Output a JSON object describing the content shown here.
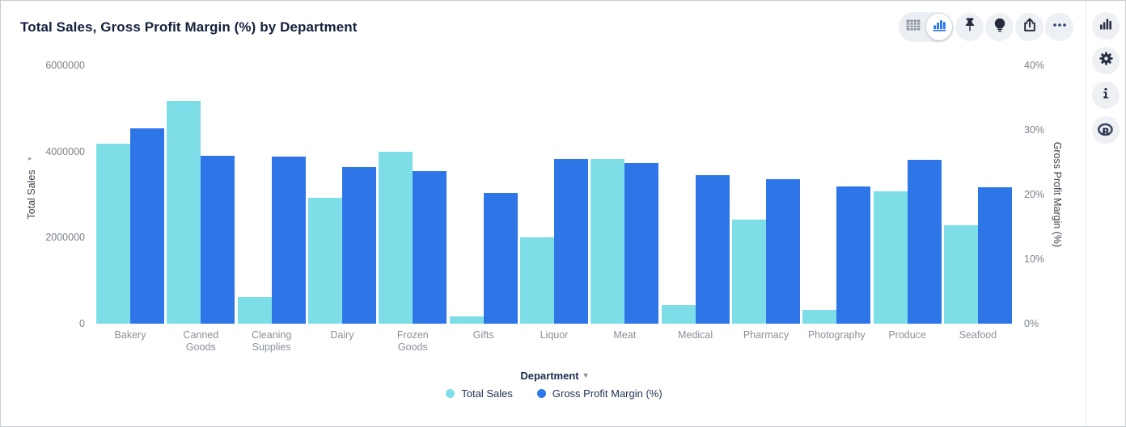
{
  "header": {
    "title": "Total Sales, Gross Profit Margin (%) by Department"
  },
  "toolbar": {
    "view_toggle": {
      "selected": "chart",
      "options": [
        "table",
        "chart"
      ]
    },
    "buttons": [
      "pin",
      "insights",
      "export",
      "more-options"
    ]
  },
  "right_rail": {
    "buttons": [
      "chart-type",
      "settings",
      "info",
      "r-analytics"
    ]
  },
  "chart_data": {
    "type": "bar",
    "title": "Total Sales, Gross Profit Margin (%) by Department",
    "categories": [
      "Bakery",
      "Canned Goods",
      "Cleaning Supplies",
      "Dairy",
      "Frozen Goods",
      "Gifts",
      "Liquor",
      "Meat",
      "Medical",
      "Pharmacy",
      "Photography",
      "Produce",
      "Seafood"
    ],
    "series": [
      {
        "name": "Total Sales",
        "axis": "left",
        "color": "#7EDEE8",
        "values": [
          4180000,
          5180000,
          620000,
          2930000,
          3990000,
          170000,
          2000000,
          3830000,
          430000,
          2420000,
          320000,
          3080000,
          2290000
        ]
      },
      {
        "name": "Gross Profit Margin (%)",
        "axis": "right",
        "color": "#2E76E8",
        "values": [
          30.3,
          26,
          25.9,
          24.3,
          23.6,
          20.3,
          25.5,
          24.9,
          23,
          22.4,
          21.3,
          25.4,
          21.1
        ]
      }
    ],
    "left_axis": {
      "label": "Total Sales",
      "arrow": "▸",
      "min": 0,
      "max": 6000000,
      "ticks": [
        "6000000",
        "4000000",
        "2000000",
        "0"
      ]
    },
    "right_axis": {
      "label": "Gross Profit Margin (%)",
      "arrow": "◂",
      "min": 0,
      "max": 40,
      "ticks": [
        "40%",
        "30%",
        "20%",
        "10%",
        "0%"
      ]
    },
    "xlabel": "Department",
    "x_axis_caret": "▾",
    "legend": [
      {
        "label": "Total Sales",
        "color": "#7EDEE8"
      },
      {
        "label": "Gross Profit Margin (%)",
        "color": "#2E76E8"
      }
    ],
    "legend_position": "bottom",
    "grid": false
  },
  "colors": {
    "series_total_sales": "#7EDEE8",
    "series_gross_profit_margin": "#2E76E8",
    "accent_blue": "#2E76E8",
    "text_navy": "#1C2C4E",
    "text_gray": "#8A9099"
  }
}
